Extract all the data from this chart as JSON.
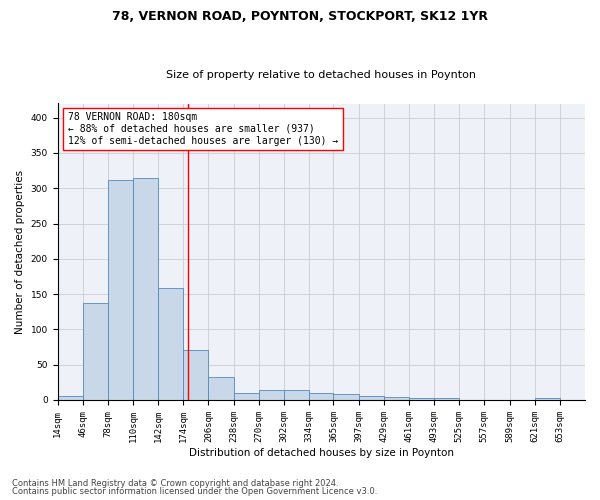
{
  "title1": "78, VERNON ROAD, POYNTON, STOCKPORT, SK12 1YR",
  "title2": "Size of property relative to detached houses in Poynton",
  "xlabel": "Distribution of detached houses by size in Poynton",
  "ylabel": "Number of detached properties",
  "bin_labels": [
    "14sqm",
    "46sqm",
    "78sqm",
    "110sqm",
    "142sqm",
    "174sqm",
    "206sqm",
    "238sqm",
    "270sqm",
    "302sqm",
    "334sqm",
    "365sqm",
    "397sqm",
    "429sqm",
    "461sqm",
    "493sqm",
    "525sqm",
    "557sqm",
    "589sqm",
    "621sqm",
    "653sqm"
  ],
  "bin_edges": [
    14,
    46,
    78,
    110,
    142,
    174,
    206,
    238,
    270,
    302,
    334,
    365,
    397,
    429,
    461,
    493,
    525,
    557,
    589,
    621,
    653,
    685
  ],
  "bar_heights": [
    5,
    137,
    311,
    314,
    158,
    71,
    33,
    10,
    14,
    14,
    10,
    8,
    5,
    4,
    3,
    3,
    0,
    0,
    0,
    3,
    0
  ],
  "bar_color": "#c8d8e8",
  "bar_edgecolor": "#5588bb",
  "vline_x": 180,
  "vline_color": "red",
  "annotation_text": "78 VERNON ROAD: 180sqm\n← 88% of detached houses are smaller (937)\n12% of semi-detached houses are larger (130) →",
  "annotation_box_color": "white",
  "annotation_box_edgecolor": "red",
  "ylim": [
    0,
    420
  ],
  "yticks": [
    0,
    50,
    100,
    150,
    200,
    250,
    300,
    350,
    400
  ],
  "grid_color": "#cccccc",
  "bg_color": "#eef2f8",
  "footer1": "Contains HM Land Registry data © Crown copyright and database right 2024.",
  "footer2": "Contains public sector information licensed under the Open Government Licence v3.0.",
  "title1_fontsize": 9,
  "title2_fontsize": 8,
  "axis_label_fontsize": 7.5,
  "tick_fontsize": 6.5,
  "annotation_fontsize": 7,
  "footer_fontsize": 6
}
